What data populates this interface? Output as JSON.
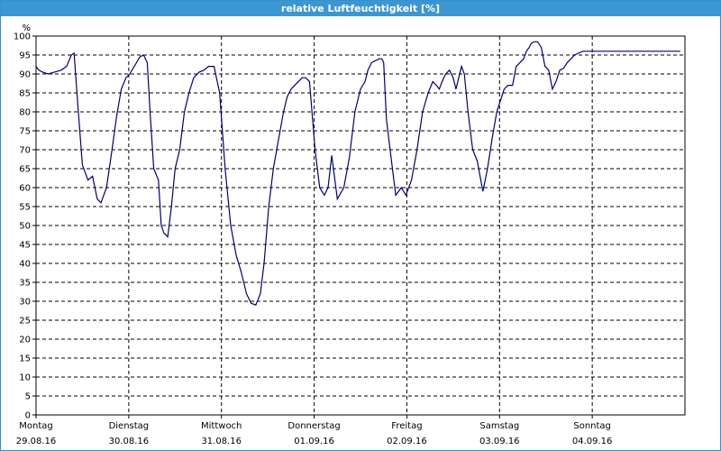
{
  "window": {
    "title": "relative Luftfeuchtigkeit [%]"
  },
  "chart_data": {
    "type": "line",
    "title": "relative Luftfeuchtigkeit [%]",
    "ylabel": "%",
    "xlabel": "",
    "ylim": [
      0,
      100
    ],
    "y_ticks": [
      0,
      5,
      10,
      15,
      20,
      25,
      30,
      35,
      40,
      45,
      50,
      55,
      60,
      65,
      70,
      75,
      80,
      85,
      90,
      95,
      100
    ],
    "xlim": [
      0,
      7
    ],
    "x_ticks": [
      {
        "day": "Montag",
        "date": "29.08.16",
        "x": 0
      },
      {
        "day": "Dienstag",
        "date": "30.08.16",
        "x": 1
      },
      {
        "day": "Mittwoch",
        "date": "31.08.16",
        "x": 2
      },
      {
        "day": "Donnerstag",
        "date": "01.09.16",
        "x": 3
      },
      {
        "day": "Freitag",
        "date": "02.09.16",
        "x": 4
      },
      {
        "day": "Samstag",
        "date": "03.09.16",
        "x": 5
      },
      {
        "day": "Sonntag",
        "date": "04.09.16",
        "x": 6
      }
    ],
    "grid": true,
    "line_color": "#000080",
    "series": [
      {
        "x": [
          0,
          0.03,
          0.07,
          0.13,
          0.2,
          0.27,
          0.33,
          0.38,
          0.41,
          0.45,
          0.5,
          0.56,
          0.61,
          0.66,
          0.7,
          0.76,
          0.82,
          0.87,
          0.92,
          0.97,
          1.01,
          1.06,
          1.12,
          1.16,
          1.2,
          1.23,
          1.27,
          1.32,
          1.35,
          1.38,
          1.42,
          1.46,
          1.5,
          1.55,
          1.6,
          1.65,
          1.7,
          1.76,
          1.81,
          1.86,
          1.92,
          1.98,
          2.04,
          2.1,
          2.16,
          2.21,
          2.27,
          2.32,
          2.37,
          2.42,
          2.46,
          2.51,
          2.56,
          2.61,
          2.67,
          2.71,
          2.75,
          2.79,
          2.83,
          2.87,
          2.91,
          2.95,
          3.01,
          3.06,
          3.11,
          3.15,
          3.19,
          3.25,
          3.32,
          3.38,
          3.44,
          3.5,
          3.55,
          3.58,
          3.62,
          3.66,
          3.7,
          3.73,
          3.75,
          3.78,
          3.83,
          3.88,
          3.94,
          3.99,
          4.05,
          4.11,
          4.17,
          4.23,
          4.28,
          4.32,
          4.35,
          4.38,
          4.42,
          4.46,
          4.5,
          4.53,
          4.56,
          4.59,
          4.62,
          4.66,
          4.71,
          4.76,
          4.82,
          4.87,
          4.92,
          4.97,
          5.01,
          5.05,
          5.09,
          5.14,
          5.18,
          5.22,
          5.26,
          5.29,
          5.32,
          5.34,
          5.37,
          5.41,
          5.45,
          5.49,
          5.53,
          5.57,
          5.61,
          5.65,
          5.69,
          5.73,
          5.77,
          5.81,
          5.85,
          5.9,
          5.94,
          5.98,
          6.01,
          6.04,
          6.08,
          6.12,
          6.16,
          6.21,
          6.26,
          6.31,
          6.36,
          6.41,
          6.46,
          6.5,
          6.53,
          6.56,
          6.58,
          6.61,
          6.63,
          6.66,
          6.7,
          6.75,
          6.8,
          6.85,
          6.91,
          6.95
        ],
        "values": [
          92,
          91,
          90.5,
          90,
          90.5,
          91,
          92,
          95,
          95.5,
          82,
          66,
          62,
          63,
          57,
          56,
          60,
          70,
          79,
          86,
          89,
          90,
          92,
          94.5,
          95,
          93,
          80,
          65,
          62,
          50,
          48,
          47,
          55,
          65,
          70,
          80,
          85,
          89,
          90.5,
          91,
          92,
          92,
          85,
          65,
          50,
          42,
          38,
          32,
          29.5,
          29,
          32,
          40,
          55,
          65,
          72,
          80,
          84,
          86,
          87,
          88,
          89,
          89,
          88,
          70,
          60,
          58,
          60,
          68.5,
          57,
          60,
          68,
          80,
          86,
          88,
          91,
          93,
          93.5,
          94,
          94,
          93,
          78,
          68,
          58,
          60,
          58,
          62,
          70,
          80,
          85,
          88,
          87,
          86,
          88,
          90,
          91,
          89,
          86,
          89,
          92,
          90,
          80,
          70,
          67,
          59,
          65,
          73,
          80,
          83,
          86,
          87,
          87,
          92,
          93,
          94,
          96,
          97,
          98,
          98.5,
          98.5,
          97,
          92,
          91,
          86,
          88,
          91,
          91.5,
          93,
          94,
          95,
          95.5,
          96,
          96,
          96,
          96,
          96,
          96,
          96,
          96,
          96,
          96,
          96,
          96,
          96,
          96,
          96,
          96,
          96,
          96,
          96,
          96,
          96,
          96,
          96,
          96,
          96,
          96,
          96
        ]
      }
    ]
  }
}
